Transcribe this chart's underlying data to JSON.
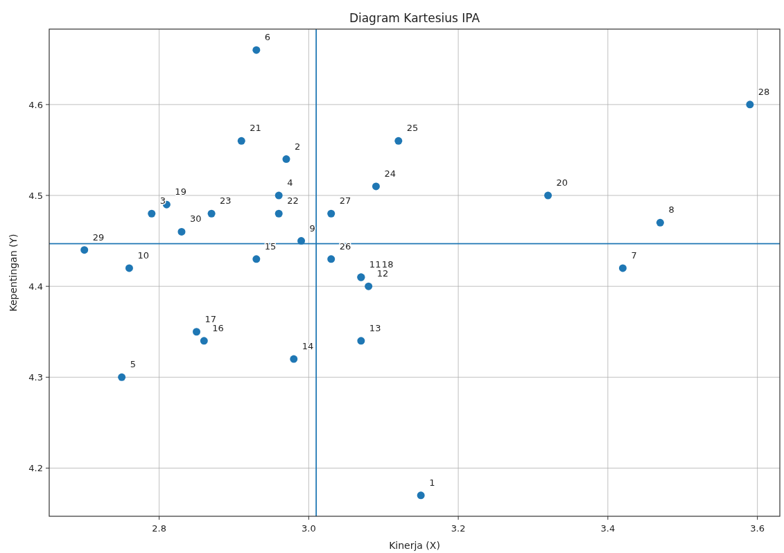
{
  "chart_data": {
    "type": "scatter",
    "title": "Diagram Kartesius IPA",
    "xlabel": "Kinerja (X)",
    "ylabel": "Kepentingan (Y)",
    "x": [
      3.15,
      2.97,
      2.79,
      2.96,
      2.75,
      2.93,
      3.42,
      3.47,
      2.99,
      2.76,
      3.07,
      3.08,
      3.07,
      2.98,
      2.93,
      2.86,
      2.85,
      3.07,
      2.81,
      3.32,
      2.91,
      2.96,
      2.87,
      3.09,
      3.12,
      3.03,
      3.03,
      3.59,
      2.7,
      2.83
    ],
    "values": [
      4.17,
      4.54,
      4.48,
      4.5,
      4.3,
      4.66,
      4.42,
      4.47,
      4.45,
      4.42,
      4.41,
      4.4,
      4.34,
      4.32,
      4.43,
      4.34,
      4.35,
      4.41,
      4.49,
      4.5,
      4.56,
      4.48,
      4.48,
      4.51,
      4.56,
      4.43,
      4.48,
      4.6,
      4.44,
      4.46
    ],
    "color": "#1f77b4",
    "marker": "circle",
    "grid": true,
    "xlim": [
      2.653,
      3.63
    ],
    "xticks": [
      2.8,
      {
        "value": 3.0,
        "label": "3.0"
      },
      3.2,
      3.4,
      3.6
    ],
    "ylim": [
      4.147,
      4.683
    ],
    "yticks": [
      4.2,
      4.3,
      4.4,
      4.5,
      4.6
    ],
    "ref_lines": [
      {
        "axis": "x",
        "value": 3.01,
        "color": "#1f77b4"
      },
      {
        "axis": "y",
        "value": 4.447,
        "color": "#1f77b4"
      }
    ],
    "annotations": [
      {
        "text": "1",
        "x": 3.15,
        "y": 4.17
      },
      {
        "text": "2",
        "x": 2.97,
        "y": 4.54
      },
      {
        "text": "3",
        "x": 2.79,
        "y": 4.48
      },
      {
        "text": "4",
        "x": 2.96,
        "y": 4.5
      },
      {
        "text": "5",
        "x": 2.75,
        "y": 4.3
      },
      {
        "text": "6",
        "x": 2.93,
        "y": 4.66
      },
      {
        "text": "7",
        "x": 3.42,
        "y": 4.42
      },
      {
        "text": "8",
        "x": 3.47,
        "y": 4.47
      },
      {
        "text": "9",
        "x": 2.99,
        "y": 4.45
      },
      {
        "text": "10",
        "x": 2.76,
        "y": 4.42
      },
      {
        "text": "11",
        "x": 3.07,
        "y": 4.41
      },
      {
        "text": "12",
        "x": 3.08,
        "y": 4.4
      },
      {
        "text": "13",
        "x": 3.07,
        "y": 4.34
      },
      {
        "text": "14",
        "x": 2.98,
        "y": 4.32
      },
      {
        "text": "15",
        "x": 2.93,
        "y": 4.43
      },
      {
        "text": "16",
        "x": 2.86,
        "y": 4.34
      },
      {
        "text": "17",
        "x": 2.85,
        "y": 4.35
      },
      {
        "text": "18",
        "x": 3.07,
        "y": 4.41
      },
      {
        "text": "19",
        "x": 2.81,
        "y": 4.49
      },
      {
        "text": "20",
        "x": 3.32,
        "y": 4.5
      },
      {
        "text": "21",
        "x": 2.91,
        "y": 4.56
      },
      {
        "text": "22",
        "x": 2.96,
        "y": 4.48
      },
      {
        "text": "23",
        "x": 2.87,
        "y": 4.48
      },
      {
        "text": "24",
        "x": 3.09,
        "y": 4.51
      },
      {
        "text": "25",
        "x": 3.12,
        "y": 4.56
      },
      {
        "text": "26",
        "x": 3.03,
        "y": 4.43
      },
      {
        "text": "27",
        "x": 3.03,
        "y": 4.48
      },
      {
        "text": "28",
        "x": 3.59,
        "y": 4.6
      },
      {
        "text": "29",
        "x": 2.7,
        "y": 4.44
      },
      {
        "text": "30",
        "x": 2.83,
        "y": 4.46
      }
    ]
  }
}
